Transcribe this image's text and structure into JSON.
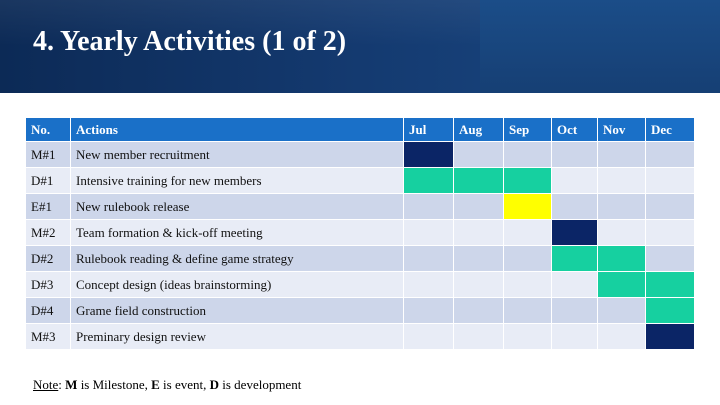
{
  "slide": {
    "title": "4. Yearly Activities (1 of 2)"
  },
  "table": {
    "headers": [
      "No.",
      "Actions",
      "Jul",
      "Aug",
      "Sep",
      "Oct",
      "Nov",
      "Dec"
    ],
    "rows": [
      {
        "no": "M#1",
        "action": "New member recruitment"
      },
      {
        "no": "D#1",
        "action": "Intensive training for new members"
      },
      {
        "no": "E#1",
        "action": "New rulebook release"
      },
      {
        "no": "M#2",
        "action": "Team formation & kick-off meeting"
      },
      {
        "no": "D#2",
        "action": "Rulebook reading & define game strategy"
      },
      {
        "no": "D#3",
        "action": "Concept design (ideas brainstorming)"
      },
      {
        "no": "D#4",
        "action": "Grame field construction"
      },
      {
        "no": "M#3",
        "action": "Preminary design review"
      }
    ],
    "schedule": [
      [
        "milestone",
        "",
        "",
        "",
        "",
        ""
      ],
      [
        "development",
        "development",
        "development",
        "",
        "",
        ""
      ],
      [
        "",
        "",
        "event",
        "",
        "",
        ""
      ],
      [
        "",
        "",
        "",
        "milestone",
        "",
        ""
      ],
      [
        "",
        "",
        "",
        "development",
        "development",
        ""
      ],
      [
        "",
        "",
        "",
        "",
        "development",
        "development"
      ],
      [
        "",
        "",
        "",
        "",
        "",
        "development"
      ],
      [
        "",
        "",
        "",
        "",
        "",
        "milestone"
      ]
    ],
    "colors": {
      "milestone": "#0b2566",
      "development": "#16d0a0",
      "event": "#ffff00",
      "header": "#1a70c8"
    }
  },
  "note": {
    "prefix": "Note",
    "sep1": ": ",
    "m_key": "M",
    "m_desc": " is Milestone, ",
    "e_key": "E",
    "e_desc": " is event, ",
    "d_key": "D",
    "d_desc": " is development"
  }
}
